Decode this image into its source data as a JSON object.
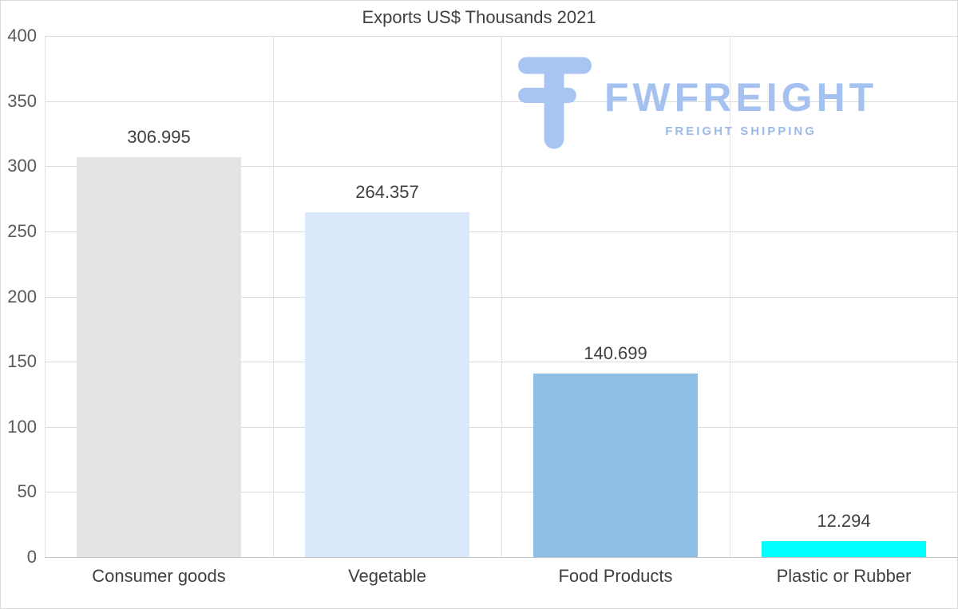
{
  "logo": {
    "name": "FWFREIGHT",
    "tagline": "FREIGHT SHIPPING",
    "color": "#a8c4f2"
  },
  "chart_data": {
    "type": "bar",
    "title": "Exports US$ Thousands 2021",
    "categories": [
      "Consumer goods",
      "Vegetable",
      "Food Products",
      "Plastic or Rubber"
    ],
    "values": [
      306.995,
      264.357,
      140.699,
      12.294
    ],
    "value_labels": [
      "306.995",
      "264.357",
      "140.699",
      "12.294"
    ],
    "bar_colors": [
      "#e4e4e4",
      "#d9e8fb",
      "#8ec0e7",
      "#00ffff"
    ],
    "xlabel": "",
    "ylabel": "",
    "ylim": [
      0,
      400
    ],
    "yticks": [
      0,
      50,
      100,
      150,
      200,
      250,
      300,
      350,
      400
    ],
    "grid": "horizontal-gridlines-and-vertical-category-separators",
    "legend": "none"
  }
}
